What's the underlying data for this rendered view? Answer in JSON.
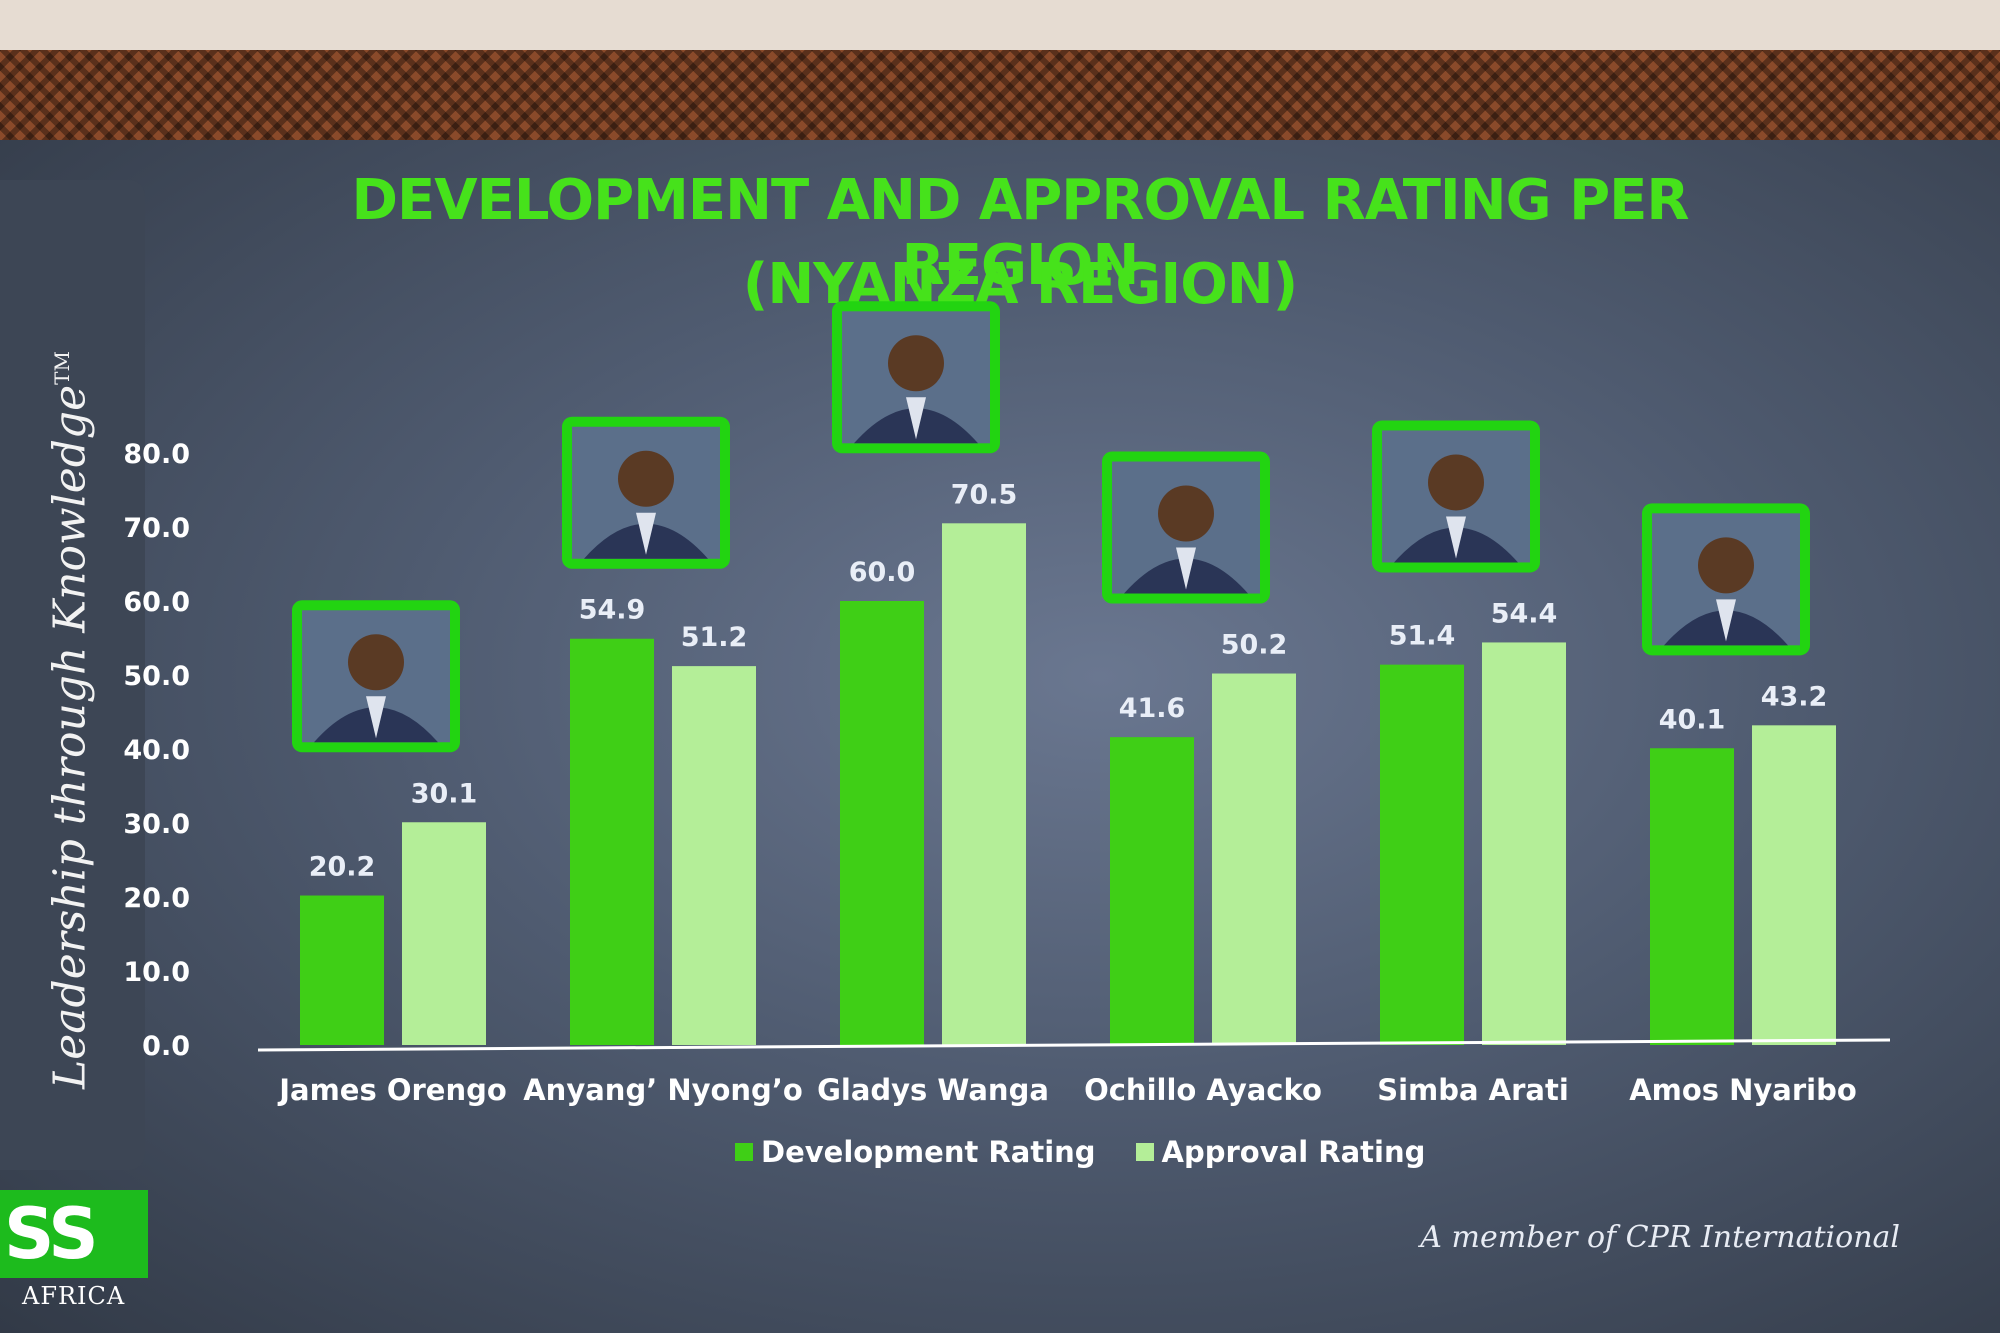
{
  "tagline": "Leadership through Knowledge",
  "tagline_mark": "TM",
  "logo": {
    "text": "SS",
    "sub": "AFRICA"
  },
  "footer": "A member of CPR International",
  "colors": {
    "development": "#3fcf16",
    "approval": "#b4ee98",
    "title": "#46e21b",
    "photo_frame": "#22d411"
  },
  "chart_data": {
    "type": "bar",
    "title": "DEVELOPMENT AND APPROVAL RATING PER REGION",
    "subtitle": "(NYANZA REGION)",
    "categories": [
      "James Orengo",
      "Anyang’ Nyong’o",
      "Gladys Wanga",
      "Ochillo Ayacko",
      "Simba Arati",
      "Amos Nyaribo"
    ],
    "series": [
      {
        "name": "Development Rating",
        "values": [
          20.2,
          54.9,
          60.0,
          41.6,
          51.4,
          40.1
        ]
      },
      {
        "name": "Approval Rating",
        "values": [
          30.1,
          51.2,
          70.5,
          50.2,
          54.4,
          43.2
        ]
      }
    ],
    "yticks": [
      "0.0",
      "10.0",
      "20.0",
      "30.0",
      "40.0",
      "50.0",
      "60.0",
      "70.0",
      "80.0"
    ],
    "ylim": [
      0,
      80
    ],
    "legend_position": "bottom",
    "grid": false,
    "data_labels": true,
    "photos_above_bars": true
  }
}
